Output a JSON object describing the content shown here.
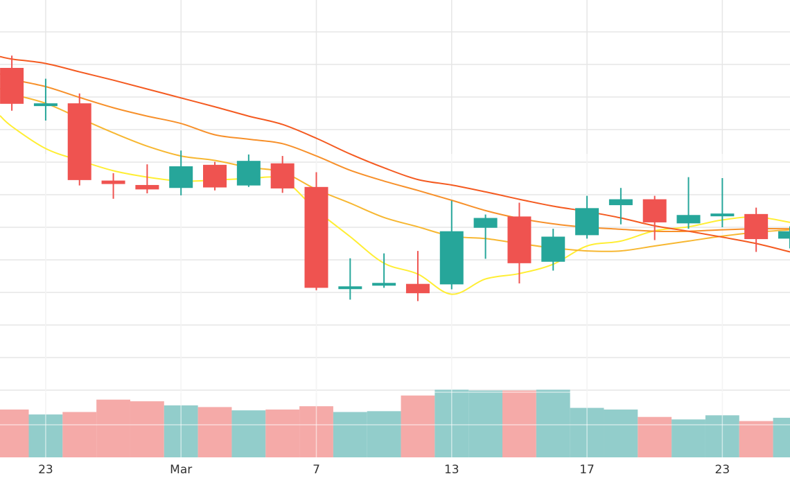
{
  "chart_data": {
    "type": "candlestick",
    "title": "",
    "xlabel": "",
    "ylabel": "",
    "grid": true,
    "legend": "none",
    "x_tick_labels": [
      {
        "day": 1,
        "label": "23"
      },
      {
        "day": 5,
        "label": "Mar"
      },
      {
        "day": 9,
        "label": "7"
      },
      {
        "day": 13,
        "label": "13"
      },
      {
        "day": 17,
        "label": "17"
      },
      {
        "day": 21,
        "label": "23"
      }
    ],
    "x_range": [
      -0.35,
      23.0
    ],
    "price_range": [
      0,
      100
    ],
    "volume_range": [
      0,
      100
    ],
    "colors": {
      "up": "#26a69a",
      "down": "#ef5350",
      "volume_up": "#92cdcb",
      "volume_down": "#f5aaa8",
      "grid": "#e6e6e6",
      "ma": [
        "#ffee33",
        "#f7b731",
        "#f7902a",
        "#f45a20"
      ]
    },
    "candles": [
      {
        "day": 0,
        "open": 86.2,
        "high": 88.7,
        "low": 77.5,
        "close": 78.9,
        "volume": 29
      },
      {
        "day": 1,
        "open": 79.0,
        "high": 84.0,
        "low": 75.5,
        "close": 79.0,
        "volume": 26
      },
      {
        "day": 2,
        "open": 79.0,
        "high": 81.0,
        "low": 62.3,
        "close": 63.4,
        "volume": 27.5
      },
      {
        "day": 3,
        "open": 63.3,
        "high": 64.8,
        "low": 59.6,
        "close": 62.6,
        "volume": 35
      },
      {
        "day": 4,
        "open": 62.4,
        "high": 66.6,
        "low": 60.7,
        "close": 61.5,
        "volume": 34
      },
      {
        "day": 5,
        "open": 61.8,
        "high": 69.4,
        "low": 60.3,
        "close": 66.2,
        "volume": 31.5
      },
      {
        "day": 6,
        "open": 66.5,
        "high": 67.1,
        "low": 61.3,
        "close": 61.9,
        "volume": 30.5
      },
      {
        "day": 7,
        "open": 62.3,
        "high": 68.6,
        "low": 62.0,
        "close": 67.3,
        "volume": 28.5
      },
      {
        "day": 8,
        "open": 66.8,
        "high": 68.3,
        "low": 60.8,
        "close": 61.7,
        "volume": 29
      },
      {
        "day": 9,
        "open": 62.0,
        "high": 65.0,
        "low": 41.0,
        "close": 41.5,
        "volume": 31
      },
      {
        "day": 10,
        "open": 41.8,
        "high": 47.5,
        "low": 39.1,
        "close": 41.8,
        "volume": 27.5
      },
      {
        "day": 11,
        "open": 42.0,
        "high": 48.5,
        "low": 41.5,
        "close": 42.5,
        "volume": 28
      },
      {
        "day": 12,
        "open": 42.3,
        "high": 49.0,
        "low": 38.8,
        "close": 40.4,
        "volume": 37.5
      },
      {
        "day": 13,
        "open": 42.2,
        "high": 59.2,
        "low": 41.2,
        "close": 53.0,
        "volume": 41
      },
      {
        "day": 14,
        "open": 53.7,
        "high": 56.4,
        "low": 47.4,
        "close": 55.7,
        "volume": 40.5
      },
      {
        "day": 15,
        "open": 56.0,
        "high": 58.8,
        "low": 42.4,
        "close": 46.5,
        "volume": 40.5
      },
      {
        "day": 16,
        "open": 46.8,
        "high": 53.5,
        "low": 45.0,
        "close": 51.9,
        "volume": 41
      },
      {
        "day": 17,
        "open": 52.2,
        "high": 60.2,
        "low": 51.5,
        "close": 57.7,
        "volume": 30
      },
      {
        "day": 18,
        "open": 58.3,
        "high": 61.8,
        "low": 54.4,
        "close": 59.5,
        "volume": 29
      },
      {
        "day": 19,
        "open": 59.5,
        "high": 60.2,
        "low": 51.2,
        "close": 54.8,
        "volume": 24.5
      },
      {
        "day": 20,
        "open": 54.6,
        "high": 64.0,
        "low": 53.5,
        "close": 56.3,
        "volume": 23
      },
      {
        "day": 21,
        "open": 56.4,
        "high": 63.8,
        "low": 53.8,
        "close": 56.6,
        "volume": 25.5
      },
      {
        "day": 22,
        "open": 56.5,
        "high": 57.8,
        "low": 48.8,
        "close": 51.4,
        "volume": 22
      },
      {
        "day": 23,
        "open": 51.5,
        "high": 54.0,
        "low": 49.5,
        "close": 53.0,
        "volume": 24
      }
    ],
    "moving_averages": [
      {
        "points": [
          [
            -0.35,
            76.5
          ],
          [
            0,
            74.3
          ],
          [
            1,
            69.8
          ],
          [
            2,
            67.4
          ],
          [
            3,
            65.3
          ],
          [
            4,
            64.0
          ],
          [
            5,
            63.2
          ],
          [
            6,
            63.4
          ],
          [
            7,
            63.7
          ],
          [
            8,
            63.5
          ],
          [
            9,
            57.3
          ],
          [
            10,
            51.9
          ],
          [
            11,
            46.5
          ],
          [
            12,
            44.3
          ],
          [
            13,
            40.2
          ],
          [
            14,
            43.3
          ],
          [
            15,
            44.4
          ],
          [
            16,
            46.3
          ],
          [
            17,
            50.0
          ],
          [
            18,
            51.0
          ],
          [
            19,
            53.1
          ],
          [
            20,
            53.9
          ],
          [
            21,
            55.3
          ],
          [
            22,
            55.9
          ],
          [
            23,
            54.8
          ]
        ]
      },
      {
        "points": [
          [
            -0.35,
            82.0
          ],
          [
            0,
            80.9
          ],
          [
            1,
            79.0
          ],
          [
            2,
            76.0
          ],
          [
            3,
            73.0
          ],
          [
            4,
            70.3
          ],
          [
            5,
            68.3
          ],
          [
            6,
            67.4
          ],
          [
            7,
            66.0
          ],
          [
            8,
            65.0
          ],
          [
            9,
            61.5
          ],
          [
            10,
            58.7
          ],
          [
            11,
            55.8
          ],
          [
            12,
            53.9
          ],
          [
            13,
            52.0
          ],
          [
            14,
            51.5
          ],
          [
            15,
            50.5
          ],
          [
            16,
            49.6
          ],
          [
            17,
            49.0
          ],
          [
            18,
            49.0
          ],
          [
            19,
            50.0
          ],
          [
            20,
            51.0
          ],
          [
            21,
            52.0
          ],
          [
            22,
            52.8
          ],
          [
            23,
            53.3
          ]
        ]
      },
      {
        "points": [
          [
            -0.35,
            85.0
          ],
          [
            0,
            83.9
          ],
          [
            1,
            82.4
          ],
          [
            2,
            80.2
          ],
          [
            3,
            78.1
          ],
          [
            4,
            76.4
          ],
          [
            5,
            74.9
          ],
          [
            6,
            72.6
          ],
          [
            7,
            71.7
          ],
          [
            8,
            70.8
          ],
          [
            9,
            68.3
          ],
          [
            10,
            65.4
          ],
          [
            11,
            63.2
          ],
          [
            12,
            61.3
          ],
          [
            13,
            59.3
          ],
          [
            14,
            57.2
          ],
          [
            15,
            55.6
          ],
          [
            16,
            54.5
          ],
          [
            17,
            53.8
          ],
          [
            18,
            53.4
          ],
          [
            19,
            53.0
          ],
          [
            20,
            53.0
          ],
          [
            21,
            53.3
          ],
          [
            22,
            53.5
          ],
          [
            23,
            53.5
          ]
        ]
      },
      {
        "points": [
          [
            -0.35,
            88.5
          ],
          [
            0,
            88.0
          ],
          [
            1,
            87.1
          ],
          [
            2,
            85.4
          ],
          [
            3,
            83.7
          ],
          [
            4,
            81.9
          ],
          [
            5,
            80.1
          ],
          [
            6,
            78.3
          ],
          [
            7,
            76.4
          ],
          [
            8,
            74.7
          ],
          [
            9,
            71.9
          ],
          [
            10,
            68.7
          ],
          [
            11,
            65.9
          ],
          [
            12,
            63.5
          ],
          [
            13,
            62.4
          ],
          [
            14,
            61.0
          ],
          [
            15,
            59.5
          ],
          [
            16,
            58.1
          ],
          [
            17,
            57.0
          ],
          [
            18,
            55.7
          ],
          [
            19,
            54.1
          ],
          [
            20,
            53.0
          ],
          [
            21,
            51.8
          ],
          [
            22,
            50.5
          ],
          [
            23,
            48.8
          ]
        ]
      }
    ]
  }
}
